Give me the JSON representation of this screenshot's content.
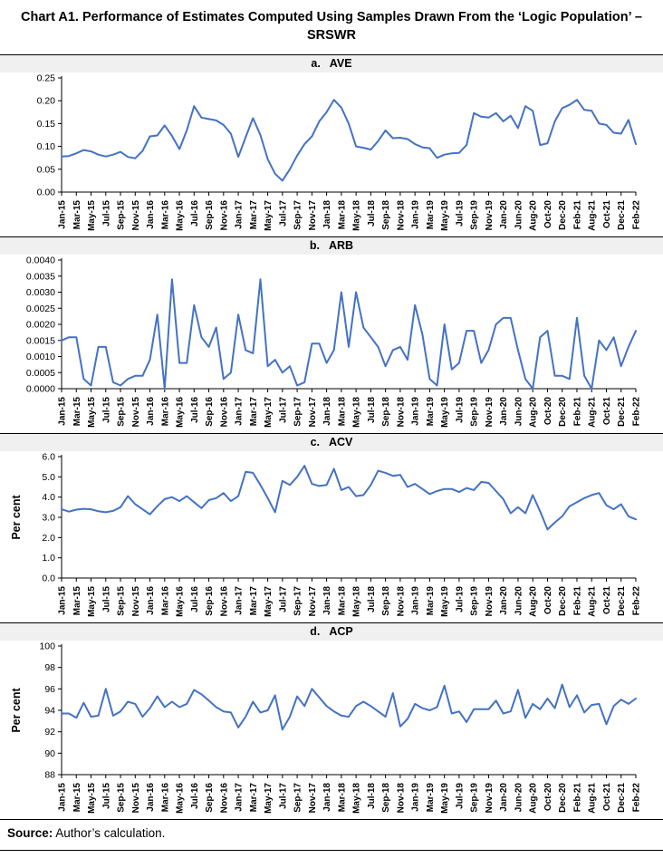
{
  "title": "Chart A1. Performance of Estimates Computed Using Samples Drawn From the ‘Logic Population’ – SRSWR",
  "footer": {
    "label": "Source:",
    "text": " Author’s calculation."
  },
  "line_color": "#4472C4",
  "axis_color": "#000000",
  "x_tick_labels": [
    "Jan-15",
    "Mar-15",
    "May-15",
    "Jul-15",
    "Sep-15",
    "Nov-15",
    "Jan-16",
    "Mar-16",
    "May-16",
    "Jul-16",
    "Sep-16",
    "Nov-16",
    "Jan-17",
    "Mar-17",
    "May-17",
    "Jul-17",
    "Sep-17",
    "Nov-17",
    "Jan-18",
    "Mar-18",
    "May-18",
    "Jul-18",
    "Sep-18",
    "Nov-18",
    "Jan-19",
    "Mar-19",
    "May-19",
    "Jul-19",
    "Sep-19",
    "Nov-19",
    "Jan-20",
    "Jun-20",
    "Aug-20",
    "Oct-20",
    "Dec-20",
    "Feb-21",
    "Aug-21",
    "Oct-21",
    "Dec-21",
    "Feb-22"
  ],
  "chart_data": [
    {
      "type": "line",
      "band_label": "a.   AVE",
      "name": "AVE",
      "ylabel": "",
      "ylim": [
        0,
        0.25
      ],
      "grid": false,
      "legend": "none",
      "yticks": [
        {
          "v": 0.25,
          "t": "0.25"
        },
        {
          "v": 0.2,
          "t": "0.20"
        },
        {
          "v": 0.15,
          "t": "0.15"
        },
        {
          "v": 0.1,
          "t": "0.10"
        },
        {
          "v": 0.05,
          "t": "0.05"
        },
        {
          "v": 0.0,
          "t": "0.00"
        }
      ],
      "values": [
        0.078,
        0.079,
        0.085,
        0.092,
        0.089,
        0.082,
        0.078,
        0.082,
        0.088,
        0.077,
        0.074,
        0.09,
        0.122,
        0.124,
        0.146,
        0.123,
        0.094,
        0.135,
        0.188,
        0.163,
        0.16,
        0.157,
        0.147,
        0.128,
        0.077,
        0.12,
        0.162,
        0.125,
        0.072,
        0.04,
        0.025,
        0.05,
        0.08,
        0.105,
        0.122,
        0.155,
        0.175,
        0.202,
        0.185,
        0.15,
        0.1,
        0.097,
        0.093,
        0.112,
        0.135,
        0.118,
        0.119,
        0.116,
        0.105,
        0.098,
        0.096,
        0.075,
        0.082,
        0.085,
        0.086,
        0.103,
        0.173,
        0.165,
        0.163,
        0.173,
        0.155,
        0.167,
        0.14,
        0.188,
        0.178,
        0.103,
        0.107,
        0.155,
        0.184,
        0.191,
        0.202,
        0.18,
        0.178,
        0.15,
        0.147,
        0.13,
        0.128,
        0.158,
        0.105
      ]
    },
    {
      "type": "line",
      "band_label": "b.   ARB",
      "name": "ARB",
      "ylabel": "",
      "ylim": [
        0,
        0.004
      ],
      "grid": false,
      "legend": "none",
      "yticks": [
        {
          "v": 0.004,
          "t": "0.0040"
        },
        {
          "v": 0.0035,
          "t": "0.0035"
        },
        {
          "v": 0.003,
          "t": "0.0030"
        },
        {
          "v": 0.0025,
          "t": "0.0025"
        },
        {
          "v": 0.002,
          "t": "0.0020"
        },
        {
          "v": 0.0015,
          "t": "0.0015"
        },
        {
          "v": 0.001,
          "t": "0.0010"
        },
        {
          "v": 0.0005,
          "t": "0.0005"
        },
        {
          "v": 0.0,
          "t": "0.0000"
        }
      ],
      "values": [
        0.0015,
        0.0016,
        0.0016,
        0.0003,
        0.0001,
        0.0013,
        0.0013,
        0.0002,
        0.0001,
        0.0003,
        0.0004,
        0.0004,
        0.0009,
        0.0023,
        0.0,
        0.0034,
        0.0008,
        0.0008,
        0.0026,
        0.0016,
        0.0013,
        0.0019,
        0.0003,
        0.0005,
        0.0023,
        0.0012,
        0.0011,
        0.0034,
        0.0007,
        0.0009,
        0.0005,
        0.0007,
        0.0001,
        0.0002,
        0.0014,
        0.0014,
        0.0008,
        0.0012,
        0.003,
        0.0013,
        0.003,
        0.0019,
        0.0016,
        0.0013,
        0.0007,
        0.0012,
        0.0013,
        0.0009,
        0.0026,
        0.0017,
        0.0003,
        0.0001,
        0.002,
        0.0006,
        0.0008,
        0.0018,
        0.0018,
        0.0008,
        0.0012,
        0.002,
        0.0022,
        0.0022,
        0.0012,
        0.0003,
        0.0,
        0.0016,
        0.0018,
        0.0004,
        0.0004,
        0.0003,
        0.0022,
        0.0004,
        0.0,
        0.0015,
        0.0012,
        0.0016,
        0.0007,
        0.0013,
        0.0018
      ]
    },
    {
      "type": "line",
      "band_label": "c.   ACV",
      "name": "ACV",
      "ylabel": "Per cent",
      "ylim": [
        0,
        6
      ],
      "grid": false,
      "legend": "none",
      "yticks": [
        {
          "v": 6,
          "t": "6.0"
        },
        {
          "v": 5,
          "t": "5.0"
        },
        {
          "v": 4,
          "t": "4.0"
        },
        {
          "v": 3,
          "t": "3.0"
        },
        {
          "v": 2,
          "t": "2.0"
        },
        {
          "v": 1,
          "t": "1.0"
        },
        {
          "v": 0,
          "t": "0.0"
        }
      ],
      "values": [
        3.4,
        3.28,
        3.38,
        3.42,
        3.4,
        3.3,
        3.25,
        3.32,
        3.5,
        4.05,
        3.65,
        3.4,
        3.15,
        3.55,
        3.9,
        4.0,
        3.8,
        4.05,
        3.75,
        3.45,
        3.85,
        3.95,
        4.2,
        3.8,
        4.05,
        5.25,
        5.2,
        4.6,
        3.95,
        3.25,
        4.8,
        4.6,
        5.0,
        5.55,
        4.65,
        4.55,
        4.6,
        5.4,
        4.35,
        4.5,
        4.05,
        4.1,
        4.6,
        5.3,
        5.2,
        5.05,
        5.1,
        4.5,
        4.65,
        4.4,
        4.15,
        4.3,
        4.4,
        4.4,
        4.25,
        4.45,
        4.35,
        4.75,
        4.7,
        4.3,
        3.9,
        3.2,
        3.5,
        3.2,
        4.1,
        3.3,
        2.4,
        2.75,
        3.05,
        3.55,
        3.75,
        3.95,
        4.1,
        4.2,
        3.6,
        3.4,
        3.65,
        3.05,
        2.9
      ]
    },
    {
      "type": "line",
      "band_label": "d.   ACP",
      "name": "ACP",
      "ylabel": "Per cent",
      "ylim": [
        88,
        100
      ],
      "grid": false,
      "legend": "none",
      "yticks": [
        {
          "v": 100,
          "t": "100"
        },
        {
          "v": 98,
          "t": "98"
        },
        {
          "v": 96,
          "t": "96"
        },
        {
          "v": 94,
          "t": "94"
        },
        {
          "v": 92,
          "t": "92"
        },
        {
          "v": 90,
          "t": "90"
        },
        {
          "v": 88,
          "t": "88"
        }
      ],
      "values": [
        93.7,
        93.7,
        93.3,
        94.7,
        93.4,
        93.5,
        96.0,
        93.5,
        93.9,
        94.8,
        94.6,
        93.4,
        94.2,
        95.3,
        94.3,
        94.8,
        94.3,
        94.6,
        95.9,
        95.5,
        94.9,
        94.3,
        93.9,
        93.8,
        92.4,
        93.4,
        94.8,
        93.8,
        94.0,
        95.4,
        92.2,
        93.4,
        95.3,
        94.4,
        96.0,
        95.2,
        94.4,
        93.9,
        93.5,
        93.4,
        94.4,
        94.8,
        94.4,
        93.9,
        93.4,
        95.6,
        92.5,
        93.2,
        94.6,
        94.2,
        94.0,
        94.3,
        96.3,
        93.7,
        93.9,
        92.9,
        94.1,
        94.1,
        94.1,
        94.9,
        93.7,
        93.9,
        95.9,
        93.3,
        94.6,
        94.1,
        95.1,
        94.2,
        96.4,
        94.3,
        95.4,
        93.8,
        94.5,
        94.6,
        92.7,
        94.4,
        95.0,
        94.6,
        95.1
      ]
    }
  ]
}
